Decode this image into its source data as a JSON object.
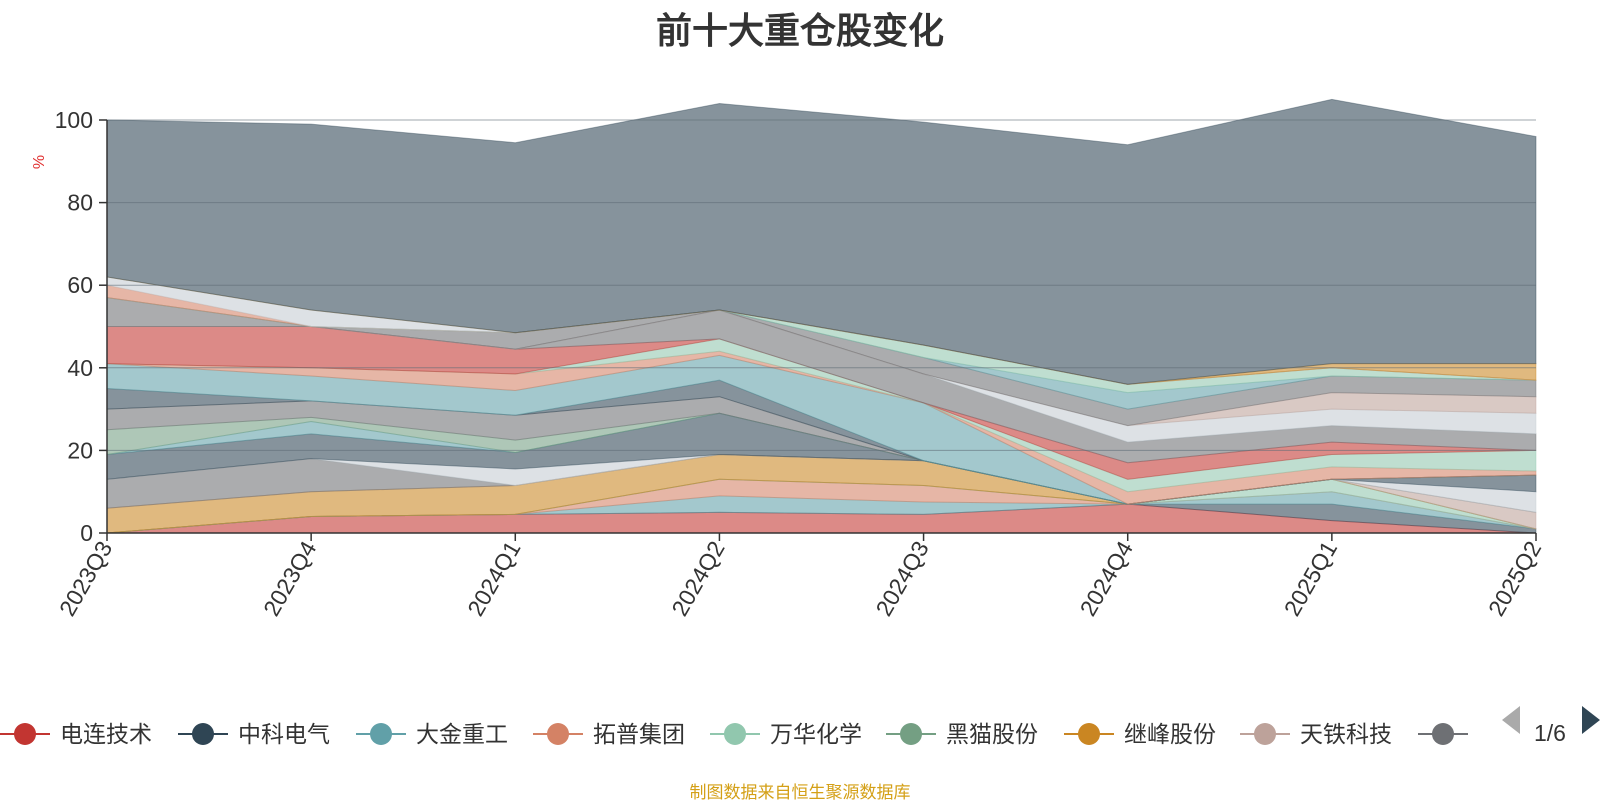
{
  "chart_data": {
    "type": "area",
    "title": "前十大重仓股变化",
    "ylabel": "%",
    "ylim": [
      0,
      100
    ],
    "yticks": [
      0,
      20,
      40,
      60,
      80,
      100
    ],
    "grid": true,
    "categories": [
      "2023Q3",
      "2023Q4",
      "2024Q1",
      "2024Q2",
      "2024Q3",
      "2024Q4",
      "2025Q1",
      "2025Q2"
    ],
    "series": [
      {
        "name": "电连技术",
        "color": "#c23531",
        "values": [
          0,
          4,
          4.5,
          5,
          4.5,
          7,
          3,
          0
        ]
      },
      {
        "name": "中科电气",
        "color": "#2f4554",
        "values": [
          0,
          0,
          0,
          0,
          0,
          0,
          4,
          1
        ]
      },
      {
        "name": "大金重工",
        "color": "#61a0a8",
        "values": [
          0,
          0,
          0,
          4,
          3,
          0,
          3,
          0
        ]
      },
      {
        "name": "拓普集团",
        "color": "#d48265",
        "values": [
          0,
          0,
          0,
          4,
          4,
          0,
          0,
          0
        ]
      },
      {
        "name": "万华化学",
        "color": "#91c7ae",
        "values": [
          0,
          0,
          0,
          0,
          0,
          0,
          3,
          0
        ]
      },
      {
        "name": "黑猫股份",
        "color": "#749f83",
        "values": [
          0,
          0,
          0,
          0,
          0,
          0,
          0,
          0
        ]
      },
      {
        "name": "继峰股份",
        "color": "#ca8622",
        "values": [
          6,
          6,
          7,
          6,
          6,
          0,
          0,
          0
        ]
      },
      {
        "name": "天铁科技",
        "color": "#bda29a",
        "values": [
          0,
          0,
          0,
          0,
          0,
          0,
          0,
          4
        ]
      },
      {
        "name": "",
        "color": "#6e7074",
        "values": [
          7,
          8,
          0,
          0,
          0,
          0,
          0,
          0
        ]
      },
      {
        "color": "#c4ccd3",
        "values": [
          0,
          0,
          4,
          0,
          0,
          0,
          0,
          5
        ]
      },
      {
        "color": "#2f4554",
        "values": [
          6,
          6,
          4,
          10,
          0,
          0,
          0,
          4
        ]
      },
      {
        "color": "#61a0a8",
        "values": [
          0,
          3,
          0,
          0,
          0,
          0,
          0,
          0
        ]
      },
      {
        "color": "#749f83",
        "values": [
          6,
          1,
          3,
          0,
          0,
          0,
          0,
          0
        ]
      },
      {
        "color": "#6e7074",
        "values": [
          5,
          4,
          6,
          4,
          0,
          0,
          0,
          0
        ]
      },
      {
        "color": "#2f4554",
        "values": [
          5,
          0,
          0,
          4,
          0,
          0,
          0,
          0
        ]
      },
      {
        "color": "#61a0a8",
        "values": [
          6,
          6,
          6,
          6,
          14,
          0,
          0,
          0
        ]
      },
      {
        "color": "#d48265",
        "values": [
          0,
          2,
          4,
          1,
          0,
          3,
          3,
          1
        ]
      },
      {
        "color": "#91c7ae",
        "values": [
          0,
          0,
          0,
          3,
          0,
          3,
          3,
          5
        ]
      },
      {
        "color": "#c23531",
        "values": [
          9,
          10,
          6,
          0,
          0,
          4,
          3,
          0
        ]
      },
      {
        "color": "#6e7074",
        "values": [
          0,
          0,
          0,
          7,
          7,
          5,
          4,
          4
        ]
      },
      {
        "color": "#c4ccd3",
        "values": [
          0,
          0,
          0,
          0,
          0,
          4,
          4,
          5
        ]
      },
      {
        "color": "#bda29a",
        "values": [
          0,
          0,
          0,
          0,
          0,
          0,
          4,
          4
        ]
      },
      {
        "color": "#6e7074",
        "values": [
          7,
          0,
          4,
          0,
          4,
          4,
          4,
          4
        ]
      },
      {
        "color": "#61a0a8",
        "values": [
          0,
          0,
          0,
          0,
          0,
          4,
          0,
          0
        ]
      },
      {
        "color": "#91c7ae",
        "values": [
          0,
          0,
          0,
          0,
          3,
          2,
          2,
          0
        ]
      },
      {
        "color": "#d48265",
        "values": [
          3,
          0,
          0,
          0,
          0,
          0,
          0,
          0
        ]
      },
      {
        "color": "#c4ccd3",
        "values": [
          2,
          4,
          0,
          0,
          0,
          0,
          0,
          0
        ]
      },
      {
        "color": "#ca8622",
        "values": [
          0,
          0,
          0,
          0,
          0,
          0,
          1,
          4
        ]
      },
      {
        "color": "#2f4554",
        "values": [
          38,
          45,
          46,
          50,
          54,
          58,
          64,
          55
        ]
      }
    ],
    "legend": {
      "position": "bottom",
      "page": "1/6"
    },
    "source_note": "制图数据来自恒生聚源数据库"
  }
}
